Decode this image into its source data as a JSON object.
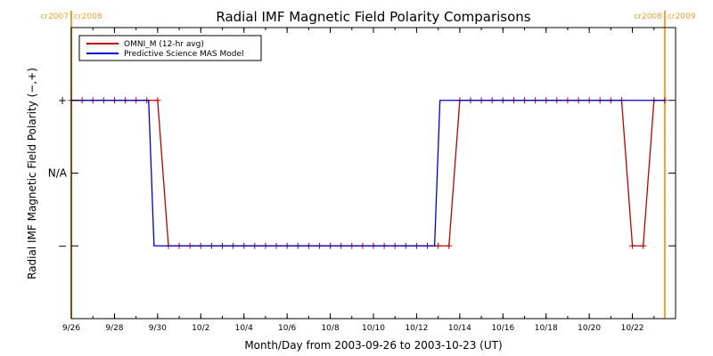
{
  "chart_data": {
    "type": "line",
    "title": "Radial IMF Magnetic Field Polarity Comparisons",
    "xlabel": "Month/Day from 2003-09-26 to 2003-10-23 (UT)",
    "ylabel": "Radial IMF Magnetic Field Polarity (−,+)",
    "x_unit": "date (2003, UT)",
    "xlim": [
      "2003-09-26",
      "2003-10-24"
    ],
    "ylim": [
      -2,
      2
    ],
    "x_ticks": [
      {
        "date": "2003-09-26",
        "label": "9/26"
      },
      {
        "date": "2003-09-28",
        "label": "9/28"
      },
      {
        "date": "2003-09-30",
        "label": "9/30"
      },
      {
        "date": "2003-10-02",
        "label": "10/2"
      },
      {
        "date": "2003-10-04",
        "label": "10/4"
      },
      {
        "date": "2003-10-06",
        "label": "10/6"
      },
      {
        "date": "2003-10-08",
        "label": "10/8"
      },
      {
        "date": "2003-10-10",
        "label": "10/10"
      },
      {
        "date": "2003-10-12",
        "label": "10/12"
      },
      {
        "date": "2003-10-14",
        "label": "10/14"
      },
      {
        "date": "2003-10-16",
        "label": "10/16"
      },
      {
        "date": "2003-10-18",
        "label": "10/18"
      },
      {
        "date": "2003-10-20",
        "label": "10/20"
      },
      {
        "date": "2003-10-22",
        "label": "10/22"
      }
    ],
    "y_ticks": [
      {
        "value": 1,
        "label": "+"
      },
      {
        "value": 0,
        "label": "N/A"
      },
      {
        "value": -1,
        "label": "−"
      }
    ],
    "grid": false,
    "legend_position": "top-left",
    "series": [
      {
        "name": "OMNI_M (12-hr avg)",
        "color": "#c00000",
        "marker": "plus",
        "points": [
          [
            "2003-09-26 00:00",
            1
          ],
          [
            "2003-09-26 12:00",
            1
          ],
          [
            "2003-09-27 00:00",
            1
          ],
          [
            "2003-09-27 12:00",
            1
          ],
          [
            "2003-09-28 00:00",
            1
          ],
          [
            "2003-09-28 12:00",
            1
          ],
          [
            "2003-09-29 00:00",
            1
          ],
          [
            "2003-09-29 12:00",
            1
          ],
          [
            "2003-09-30 00:00",
            1
          ],
          [
            "2003-09-30 12:00",
            -1
          ],
          [
            "2003-10-01 00:00",
            -1
          ],
          [
            "2003-10-01 12:00",
            -1
          ],
          [
            "2003-10-02 00:00",
            -1
          ],
          [
            "2003-10-02 12:00",
            -1
          ],
          [
            "2003-10-03 00:00",
            -1
          ],
          [
            "2003-10-03 12:00",
            -1
          ],
          [
            "2003-10-04 00:00",
            -1
          ],
          [
            "2003-10-04 12:00",
            -1
          ],
          [
            "2003-10-05 00:00",
            -1
          ],
          [
            "2003-10-05 12:00",
            -1
          ],
          [
            "2003-10-06 00:00",
            -1
          ],
          [
            "2003-10-06 12:00",
            -1
          ],
          [
            "2003-10-07 00:00",
            -1
          ],
          [
            "2003-10-07 12:00",
            -1
          ],
          [
            "2003-10-08 00:00",
            -1
          ],
          [
            "2003-10-08 12:00",
            -1
          ],
          [
            "2003-10-09 00:00",
            -1
          ],
          [
            "2003-10-09 12:00",
            -1
          ],
          [
            "2003-10-10 00:00",
            -1
          ],
          [
            "2003-10-10 12:00",
            -1
          ],
          [
            "2003-10-11 00:00",
            -1
          ],
          [
            "2003-10-11 12:00",
            -1
          ],
          [
            "2003-10-12 00:00",
            -1
          ],
          [
            "2003-10-12 12:00",
            -1
          ],
          [
            "2003-10-13 00:00",
            -1
          ],
          [
            "2003-10-13 12:00",
            -1
          ],
          [
            "2003-10-14 00:00",
            1
          ],
          [
            "2003-10-14 12:00",
            1
          ],
          [
            "2003-10-15 00:00",
            1
          ],
          [
            "2003-10-15 12:00",
            1
          ],
          [
            "2003-10-16 00:00",
            1
          ],
          [
            "2003-10-16 12:00",
            1
          ],
          [
            "2003-10-17 00:00",
            1
          ],
          [
            "2003-10-17 12:00",
            1
          ],
          [
            "2003-10-18 00:00",
            1
          ],
          [
            "2003-10-18 12:00",
            1
          ],
          [
            "2003-10-19 00:00",
            1
          ],
          [
            "2003-10-19 12:00",
            1
          ],
          [
            "2003-10-20 00:00",
            1
          ],
          [
            "2003-10-20 12:00",
            1
          ],
          [
            "2003-10-21 00:00",
            1
          ],
          [
            "2003-10-21 12:00",
            1
          ],
          [
            "2003-10-22 00:00",
            -1
          ],
          [
            "2003-10-22 12:00",
            -1
          ],
          [
            "2003-10-23 00:00",
            1
          ],
          [
            "2003-10-23 12:00",
            1
          ]
        ]
      },
      {
        "name": "Predictive Science MAS Model",
        "color": "#0000cc",
        "marker": "none",
        "points": [
          [
            "2003-09-26 00:00",
            1
          ],
          [
            "2003-09-29 14:00",
            1
          ],
          [
            "2003-09-29 20:00",
            -1
          ],
          [
            "2003-10-12 20:00",
            -1
          ],
          [
            "2003-10-13 02:00",
            1
          ],
          [
            "2003-10-23 12:00",
            1
          ]
        ]
      }
    ],
    "annotations": [
      {
        "text": "cr2007",
        "date": "2003-09-26 00:00",
        "side": "left"
      },
      {
        "text": "cr2008",
        "date": "2003-09-26 00:00",
        "side": "right"
      },
      {
        "text": "cr2008",
        "date": "2003-10-23 12:00",
        "side": "left"
      },
      {
        "text": "cr2009",
        "date": "2003-10-23 12:00",
        "side": "right"
      }
    ],
    "rotation_boundaries": [
      "2003-09-26 00:00",
      "2003-10-23 12:00"
    ],
    "boundary_color": "#f0a030"
  }
}
